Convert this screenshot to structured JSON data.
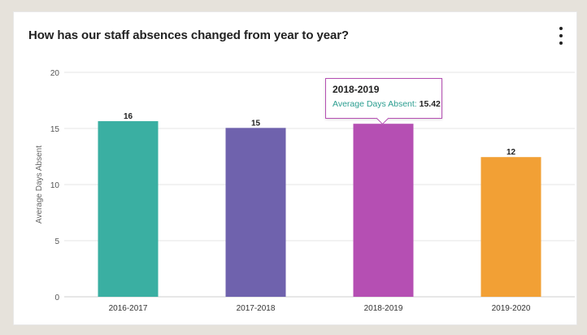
{
  "header": {
    "title": "How has our staff absences changed from year to year?",
    "menu_icon": "vertical-ellipsis-icon"
  },
  "tooltip": {
    "title": "2018-2019",
    "label": "Average Days Absent:",
    "value": "15.42"
  },
  "chart_data": {
    "type": "bar",
    "categories": [
      "2016-2017",
      "2017-2018",
      "2018-2019",
      "2019-2020"
    ],
    "values": [
      15.65,
      15.05,
      15.42,
      12.45
    ],
    "data_labels": [
      "16",
      "15",
      "",
      "12"
    ],
    "colors": [
      "#3aafa2",
      "#6f62ad",
      "#b54fb3",
      "#f2a035"
    ],
    "ylabel": "Average Days Absent",
    "xlabel": "",
    "ylim": [
      0,
      20
    ],
    "yticks": [
      0,
      5,
      10,
      15,
      20
    ],
    "grid": true,
    "highlighted_category": "2018-2019"
  }
}
